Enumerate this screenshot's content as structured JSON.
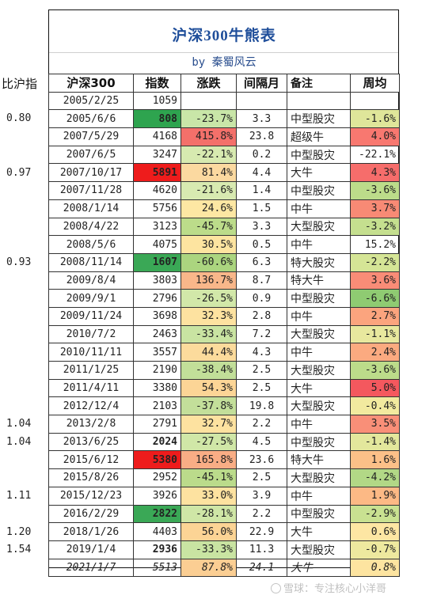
{
  "title": "沪深300牛熊表",
  "subtitle": "by 秦蜀风云",
  "left_header": "比沪指",
  "ratios": [
    {
      "row": 1,
      "value": "0.80"
    },
    {
      "row": 4,
      "value": "0.97"
    },
    {
      "row": 9,
      "value": "0.93"
    },
    {
      "row": 18,
      "value": "1.04"
    },
    {
      "row": 19,
      "value": "1.04"
    },
    {
      "row": 22,
      "value": "1.11"
    },
    {
      "row": 24,
      "value": "1.20"
    },
    {
      "row": 25,
      "value": "1.54"
    }
  ],
  "columns": [
    "沪深300",
    "指数",
    "涨跌",
    "间隔月",
    "备注",
    "周均"
  ],
  "rows": [
    {
      "date": "2005/2/25",
      "index": "1059",
      "change": "",
      "gap": "",
      "note": "",
      "weekly": "",
      "idx_bg": "",
      "chg_bg": "",
      "wk_bg": "",
      "note_color": "",
      "idx_bold": false
    },
    {
      "date": "2005/6/6",
      "index": "808",
      "change": "-23.7%",
      "gap": "3.3",
      "note": "中型股灾",
      "weekly": "-1.6%",
      "idx_bg": "#2ea44f",
      "chg_bg": "#c9e6a8",
      "wk_bg": "#dfe69a",
      "note_color": "dark",
      "idx_bold": true
    },
    {
      "date": "2007/5/29",
      "index": "4168",
      "change": "415.8%",
      "gap": "23.8",
      "note": "超级牛",
      "weekly": "4.0%",
      "idx_bg": "",
      "chg_bg": "#f3706a",
      "wk_bg": "#f87870",
      "note_color": "red",
      "idx_bold": false
    },
    {
      "date": "2007/6/5",
      "index": "3247",
      "change": "-22.1%",
      "gap": "0.2",
      "note": "中型股灾",
      "weekly": "-22.1%",
      "idx_bg": "",
      "chg_bg": "#d7eab0",
      "wk_bg": "",
      "note_color": "dark",
      "idx_bold": false
    },
    {
      "date": "2007/10/17",
      "index": "5891",
      "change": "81.4%",
      "gap": "4.4",
      "note": "大牛",
      "weekly": "4.3%",
      "idx_bg": "#ee1c1c",
      "chg_bg": "#fbd9a0",
      "wk_bg": "#f66d6b",
      "note_color": "red",
      "idx_bold": true
    },
    {
      "date": "2007/11/28",
      "index": "4620",
      "change": "-21.6%",
      "gap": "1.4",
      "note": "中型股灾",
      "weekly": "-3.6%",
      "idx_bg": "",
      "chg_bg": "#d8eab1",
      "wk_bg": "#bcdc8a",
      "note_color": "dark",
      "idx_bold": false
    },
    {
      "date": "2008/1/14",
      "index": "5756",
      "change": "24.6%",
      "gap": "1.5",
      "note": "中牛",
      "weekly": "3.7%",
      "idx_bg": "",
      "chg_bg": "#fde7a3",
      "wk_bg": "#f88a75",
      "note_color": "dark",
      "idx_bold": false
    },
    {
      "date": "2008/4/22",
      "index": "3123",
      "change": "-45.7%",
      "gap": "3.3",
      "note": "大型股灾",
      "weekly": "-3.2%",
      "idx_bg": "",
      "chg_bg": "#bcdc8a",
      "wk_bg": "#c5df8f",
      "note_color": "green",
      "idx_bold": false
    },
    {
      "date": "2008/5/6",
      "index": "4075",
      "change": "30.5%",
      "gap": "0.5",
      "note": "中牛",
      "weekly": "15.2%",
      "idx_bg": "",
      "chg_bg": "#fde4a0",
      "wk_bg": "",
      "note_color": "dark",
      "idx_bold": false
    },
    {
      "date": "2008/11/14",
      "index": "1607",
      "change": "-60.6%",
      "gap": "6.3",
      "note": "特大股灾",
      "weekly": "-2.2%",
      "idx_bg": "#3aa856",
      "chg_bg": "#abd57f",
      "wk_bg": "#d5e596",
      "note_color": "green",
      "idx_bold": true
    },
    {
      "date": "2009/8/4",
      "index": "3803",
      "change": "136.7%",
      "gap": "8.7",
      "note": "特大牛",
      "weekly": "3.6%",
      "idx_bg": "",
      "chg_bg": "#f9b78a",
      "wk_bg": "#f98c77",
      "note_color": "red",
      "idx_bold": false
    },
    {
      "date": "2009/9/1",
      "index": "2796",
      "change": "-26.5%",
      "gap": "0.9",
      "note": "中型股灾",
      "weekly": "-6.6%",
      "idx_bg": "",
      "chg_bg": "#d2e8a9",
      "wk_bg": "#8fcb72",
      "note_color": "dark",
      "idx_bold": false
    },
    {
      "date": "2009/11/24",
      "index": "3698",
      "change": "32.3%",
      "gap": "2.8",
      "note": "中牛",
      "weekly": "2.7%",
      "idx_bg": "",
      "chg_bg": "#fde2a0",
      "wk_bg": "#fba47e",
      "note_color": "dark",
      "idx_bold": false
    },
    {
      "date": "2010/7/2",
      "index": "2463",
      "change": "-33.4%",
      "gap": "7.2",
      "note": "大型股灾",
      "weekly": "-1.1%",
      "idx_bg": "",
      "chg_bg": "#c9e4a2",
      "wk_bg": "#e8e89e",
      "note_color": "green",
      "idx_bold": false
    },
    {
      "date": "2010/11/11",
      "index": "3557",
      "change": "44.4%",
      "gap": "4.3",
      "note": "中牛",
      "weekly": "2.4%",
      "idx_bg": "",
      "chg_bg": "#fcdb9c",
      "wk_bg": "#fbaa80",
      "note_color": "dark",
      "idx_bold": false
    },
    {
      "date": "2011/1/25",
      "index": "2190",
      "change": "-38.4%",
      "gap": "2.5",
      "note": "大型股灾",
      "weekly": "-3.6%",
      "idx_bg": "",
      "chg_bg": "#c2df99",
      "wk_bg": "#bcdc8a",
      "note_color": "green",
      "idx_bold": false
    },
    {
      "date": "2011/4/11",
      "index": "3380",
      "change": "54.3%",
      "gap": "2.5",
      "note": "大牛",
      "weekly": "5.0%",
      "idx_bg": "",
      "chg_bg": "#fcd596",
      "wk_bg": "#f4585e",
      "note_color": "red",
      "idx_bold": false
    },
    {
      "date": "2012/12/4",
      "index": "2103",
      "change": "-37.8%",
      "gap": "19.8",
      "note": "大型股灾",
      "weekly": "-0.4%",
      "idx_bg": "",
      "chg_bg": "#c3df9a",
      "wk_bg": "#f2ea9f",
      "note_color": "green",
      "idx_bold": false
    },
    {
      "date": "2013/2/8",
      "index": "2791",
      "change": "32.7%",
      "gap": "2.2",
      "note": "中牛",
      "weekly": "3.5%",
      "idx_bg": "",
      "chg_bg": "#fde2a0",
      "wk_bg": "#f98f78",
      "note_color": "dark",
      "idx_bold": false
    },
    {
      "date": "2013/6/25",
      "index": "2024",
      "change": "-27.5%",
      "gap": "4.5",
      "note": "中型股灾",
      "weekly": "-1.4%",
      "idx_bg": "",
      "chg_bg": "#d0e7a7",
      "wk_bg": "#e3e79c",
      "note_color": "dark",
      "idx_bold": true
    },
    {
      "date": "2015/6/12",
      "index": "5380",
      "change": "165.8%",
      "gap": "23.6",
      "note": "特大牛",
      "weekly": "1.6%",
      "idx_bg": "#ee1c1c",
      "chg_bg": "#f9ad85",
      "wk_bg": "#fcc088",
      "note_color": "red",
      "idx_bold": true
    },
    {
      "date": "2015/8/26",
      "index": "2952",
      "change": "-45.1%",
      "gap": "2.5",
      "note": "大型股灾",
      "weekly": "-4.2%",
      "idx_bg": "",
      "chg_bg": "#bbdb8b",
      "wk_bg": "#b2d886",
      "note_color": "green",
      "idx_bold": false
    },
    {
      "date": "2015/12/23",
      "index": "3926",
      "change": "33.0%",
      "gap": "3.9",
      "note": "中牛",
      "weekly": "1.9%",
      "idx_bg": "",
      "chg_bg": "#fde2a0",
      "wk_bg": "#fcb985",
      "note_color": "dark",
      "idx_bold": false
    },
    {
      "date": "2016/2/29",
      "index": "2822",
      "change": "-28.1%",
      "gap": "2.2",
      "note": "中型股灾",
      "weekly": "-2.9%",
      "idx_bg": "#3aa856",
      "chg_bg": "#cfe6a6",
      "wk_bg": "#c9e191",
      "note_color": "dark",
      "idx_bold": true
    },
    {
      "date": "2018/1/26",
      "index": "4403",
      "change": "56.0%",
      "gap": "22.9",
      "note": "大牛",
      "weekly": "0.6%",
      "idx_bg": "",
      "chg_bg": "#fcd495",
      "wk_bg": "#fde6a3",
      "note_color": "red",
      "idx_bold": false
    },
    {
      "date": "2019/1/4",
      "index": "2936",
      "change": "-33.3%",
      "gap": "11.3",
      "note": "大型股灾",
      "weekly": "-0.7%",
      "idx_bg": "",
      "chg_bg": "#c9e4a2",
      "wk_bg": "#eee99f",
      "note_color": "green",
      "idx_bold": true
    },
    {
      "date": "2021/1/7",
      "index": "5513",
      "change": "87.8%",
      "gap": "24.1",
      "note": "大牛",
      "weekly": "0.8%",
      "idx_bg": "",
      "chg_bg": "#fbce93",
      "wk_bg": "#fde4a0",
      "note_color": "red",
      "idx_bold": false,
      "italic": true
    }
  ],
  "watermark": "雪球：专注核心小洋哥"
}
